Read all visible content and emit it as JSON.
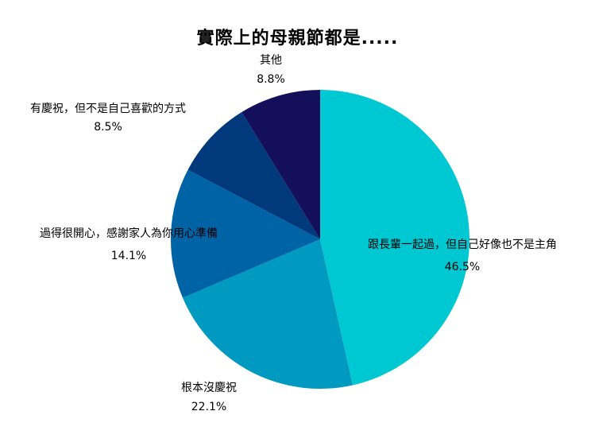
{
  "chart_data": {
    "type": "pie",
    "title": "實際上的母親節都是.....",
    "slices": [
      {
        "label": "跟長輩一起過，但自己好像也不是主角",
        "value": 46.5,
        "value_label": "46.5%",
        "color": "#00C8D2"
      },
      {
        "label": "根本沒慶祝",
        "value": 22.1,
        "value_label": "22.1%",
        "color": "#0099BF"
      },
      {
        "label": "過得很開心，感謝家人為你用心準備",
        "value": 14.1,
        "value_label": "14.1%",
        "color": "#0063A5"
      },
      {
        "label": "有慶祝，但不是自己喜歡的方式",
        "value": 8.5,
        "value_label": "8.5%",
        "color": "#003A7D"
      },
      {
        "label": "其他",
        "value": 8.8,
        "value_label": "8.8%",
        "color": "#140F5A"
      }
    ],
    "start": "12 o'clock",
    "direction": "clockwise",
    "legend": "none"
  }
}
